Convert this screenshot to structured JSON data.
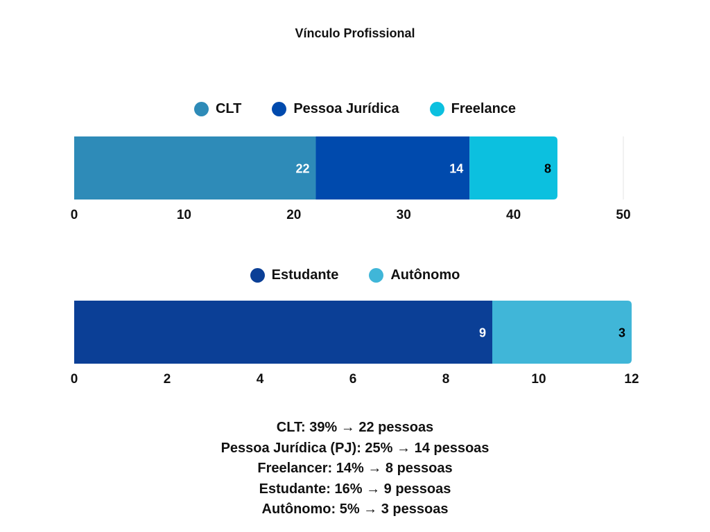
{
  "title": "Vínculo Profissional",
  "chart_data": [
    {
      "type": "bar",
      "orientation": "horizontal",
      "stacked": true,
      "categories": [
        ""
      ],
      "series": [
        {
          "name": "CLT",
          "values": [
            22
          ],
          "color": "#2e8bb8"
        },
        {
          "name": "Pessoa Jurídica",
          "values": [
            14
          ],
          "color": "#004aad"
        },
        {
          "name": "Freelance",
          "values": [
            8
          ],
          "color": "#0cc0df"
        }
      ],
      "xlim": [
        0,
        50
      ],
      "ticks": [
        "0",
        "10",
        "20",
        "30",
        "40",
        "50"
      ],
      "legend_position": "top",
      "label_colors": [
        "#ffffff",
        "#ffffff",
        "#000000"
      ]
    },
    {
      "type": "bar",
      "orientation": "horizontal",
      "stacked": true,
      "categories": [
        ""
      ],
      "series": [
        {
          "name": "Estudante",
          "values": [
            9
          ],
          "color": "#0b3f96"
        },
        {
          "name": "Autônomo",
          "values": [
            3
          ],
          "color": "#40b6d8"
        }
      ],
      "xlim": [
        0,
        12
      ],
      "ticks": [
        "0",
        "2",
        "4",
        "6",
        "8",
        "10",
        "12"
      ],
      "legend_position": "top",
      "label_colors": [
        "#ffffff",
        "#000000"
      ]
    }
  ],
  "summary": [
    "CLT: 39% → 22 pessoas",
    "Pessoa Jurídica (PJ): 25% → 14 pessoas",
    "Freelancer: 14% → 8 pessoas",
    "Estudante: 16% → 9 pessoas",
    "Autônomo: 5% → 3 pessoas"
  ]
}
